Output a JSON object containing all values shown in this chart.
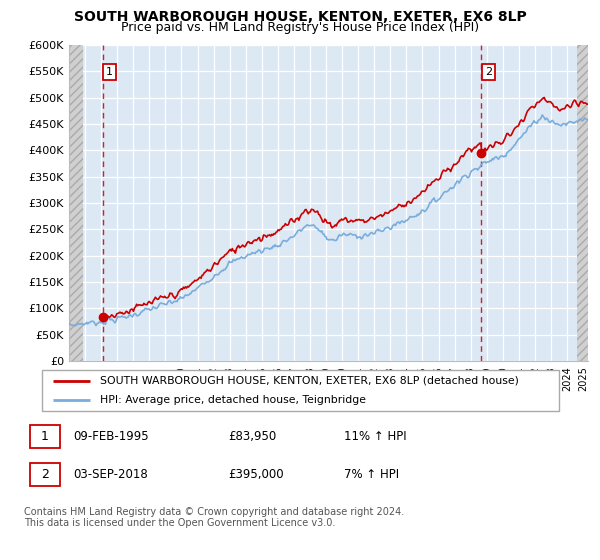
{
  "title1": "SOUTH WARBOROUGH HOUSE, KENTON, EXETER, EX6 8LP",
  "title2": "Price paid vs. HM Land Registry's House Price Index (HPI)",
  "ylim": [
    0,
    600000
  ],
  "yticks": [
    0,
    50000,
    100000,
    150000,
    200000,
    250000,
    300000,
    350000,
    400000,
    450000,
    500000,
    550000,
    600000
  ],
  "ytick_labels": [
    "£0",
    "£50K",
    "£100K",
    "£150K",
    "£200K",
    "£250K",
    "£300K",
    "£350K",
    "£400K",
    "£450K",
    "£500K",
    "£550K",
    "£600K"
  ],
  "sale1_date": 1995.1,
  "sale1_price": 83950,
  "sale1_label": "1",
  "sale2_date": 2018.67,
  "sale2_price": 395000,
  "sale2_label": "2",
  "legend_line1": "SOUTH WARBOROUGH HOUSE, KENTON, EXETER, EX6 8LP (detached house)",
  "legend_line2": "HPI: Average price, detached house, Teignbridge",
  "ann1_date": "09-FEB-1995",
  "ann1_price": "£83,950",
  "ann1_hpi": "11% ↑ HPI",
  "ann2_date": "03-SEP-2018",
  "ann2_price": "£395,000",
  "ann2_hpi": "7% ↑ HPI",
  "footer": "Contains HM Land Registry data © Crown copyright and database right 2024.\nThis data is licensed under the Open Government Licence v3.0.",
  "price_color": "#cc0000",
  "hpi_color": "#7aaddb",
  "bg_color": "#dce9f5",
  "grid_color": "#ffffff",
  "vline_color": "#cc0000",
  "xlim_left": 1993.0,
  "xlim_right": 2025.3,
  "hatch_left_end": 1993.9,
  "hatch_right_start": 2024.6
}
